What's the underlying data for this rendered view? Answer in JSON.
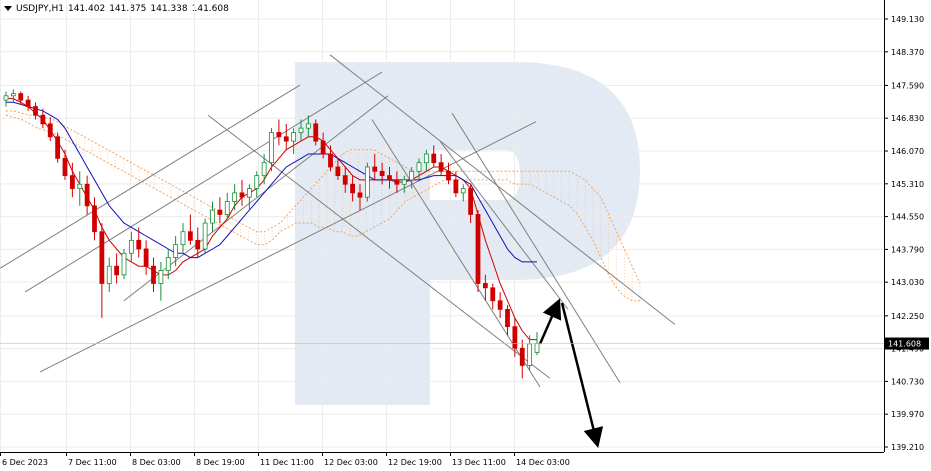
{
  "header": {
    "symbol": "USDJPY,H1",
    "open": "141.402",
    "high": "141.875",
    "low": "141.338",
    "close": "141.608"
  },
  "colors": {
    "bull": "#1a8f3a",
    "bear": "#d10000",
    "kijun": "#d10000",
    "tenkan": "#1010c0",
    "cloud": "#f4a460",
    "trend": "#808080",
    "watermark": "#dfe6f2",
    "price_tag_bg": "#000000",
    "arrow": "#000000"
  },
  "chart_data": {
    "type": "candlestick",
    "symbol": "USDJPY",
    "timeframe": "H1",
    "ylim": [
      139.0,
      149.6
    ],
    "yticks": [
      "149.130",
      "148.370",
      "147.590",
      "146.830",
      "146.070",
      "145.310",
      "144.550",
      "143.790",
      "143.030",
      "142.250",
      "141.490",
      "140.730",
      "139.970",
      "139.210"
    ],
    "current_price": "141.608",
    "xticks": [
      "6 Dec 2023",
      "7 Dec 11:00",
      "8 Dec 03:00",
      "8 Dec 19:00",
      "11 Dec 11:00",
      "12 Dec 03:00",
      "12 Dec 19:00",
      "13 Dec 11:00",
      "14 Dec 03:00"
    ],
    "grid": true,
    "candles": [
      [
        147.25,
        147.45,
        147.1,
        147.35
      ],
      [
        147.35,
        147.5,
        147.2,
        147.4
      ],
      [
        147.4,
        147.45,
        147.15,
        147.25
      ],
      [
        147.25,
        147.35,
        147.0,
        147.1
      ],
      [
        147.1,
        147.2,
        146.8,
        146.9
      ],
      [
        146.9,
        147.05,
        146.6,
        146.7
      ],
      [
        146.7,
        146.85,
        146.3,
        146.4
      ],
      [
        146.4,
        146.5,
        145.8,
        145.9
      ],
      [
        145.9,
        146.1,
        145.4,
        145.5
      ],
      [
        145.5,
        145.8,
        145.0,
        145.2
      ],
      [
        145.2,
        145.6,
        144.8,
        145.3
      ],
      [
        145.3,
        145.5,
        144.6,
        144.8
      ],
      [
        144.8,
        145.0,
        144.0,
        144.2
      ],
      [
        144.2,
        144.4,
        142.2,
        143.0
      ],
      [
        143.0,
        143.6,
        142.8,
        143.4
      ],
      [
        143.4,
        143.7,
        143.0,
        143.2
      ],
      [
        143.2,
        143.8,
        143.1,
        143.7
      ],
      [
        143.7,
        144.2,
        143.5,
        144.0
      ],
      [
        144.0,
        144.3,
        143.6,
        143.8
      ],
      [
        143.8,
        144.0,
        143.2,
        143.4
      ],
      [
        143.4,
        143.6,
        142.8,
        143.0
      ],
      [
        143.0,
        143.5,
        142.6,
        143.3
      ],
      [
        143.3,
        143.8,
        143.1,
        143.6
      ],
      [
        143.6,
        144.1,
        143.4,
        143.9
      ],
      [
        143.9,
        144.4,
        143.7,
        144.2
      ],
      [
        144.2,
        144.6,
        143.9,
        144.0
      ],
      [
        144.0,
        144.3,
        143.6,
        143.8
      ],
      [
        143.8,
        144.5,
        143.7,
        144.4
      ],
      [
        144.4,
        144.9,
        144.2,
        144.7
      ],
      [
        144.7,
        145.0,
        144.4,
        144.6
      ],
      [
        144.6,
        145.1,
        144.5,
        144.9
      ],
      [
        144.9,
        145.3,
        144.7,
        145.1
      ],
      [
        145.1,
        145.4,
        144.8,
        145.0
      ],
      [
        145.0,
        145.3,
        144.7,
        145.2
      ],
      [
        145.2,
        145.6,
        145.0,
        145.5
      ],
      [
        145.5,
        146.0,
        145.3,
        145.8
      ],
      [
        145.8,
        146.6,
        145.6,
        146.5
      ],
      [
        146.5,
        146.8,
        146.2,
        146.4
      ],
      [
        146.4,
        146.7,
        146.1,
        146.3
      ],
      [
        146.3,
        146.6,
        146.0,
        146.5
      ],
      [
        146.5,
        146.8,
        146.3,
        146.6
      ],
      [
        146.6,
        146.9,
        146.4,
        146.7
      ],
      [
        146.7,
        146.8,
        146.2,
        146.3
      ],
      [
        146.3,
        146.5,
        145.9,
        146.0
      ],
      [
        146.0,
        146.2,
        145.6,
        145.7
      ],
      [
        145.7,
        145.9,
        145.4,
        145.5
      ],
      [
        145.5,
        145.7,
        145.1,
        145.3
      ],
      [
        145.3,
        145.5,
        144.9,
        145.1
      ],
      [
        145.1,
        145.3,
        144.7,
        145.0
      ],
      [
        145.0,
        145.8,
        144.9,
        145.7
      ],
      [
        145.7,
        146.0,
        145.4,
        145.6
      ],
      [
        145.6,
        145.8,
        145.3,
        145.5
      ],
      [
        145.5,
        145.7,
        145.2,
        145.4
      ],
      [
        145.4,
        145.6,
        145.1,
        145.3
      ],
      [
        145.3,
        145.5,
        145.1,
        145.4
      ],
      [
        145.4,
        145.7,
        145.2,
        145.6
      ],
      [
        145.6,
        145.9,
        145.4,
        145.8
      ],
      [
        145.8,
        146.1,
        145.6,
        146.0
      ],
      [
        146.0,
        146.2,
        145.7,
        145.8
      ],
      [
        145.8,
        146.0,
        145.5,
        145.6
      ],
      [
        145.6,
        145.8,
        145.3,
        145.4
      ],
      [
        145.4,
        145.6,
        145.0,
        145.1
      ],
      [
        145.1,
        145.3,
        144.9,
        145.2
      ],
      [
        145.2,
        145.3,
        144.4,
        144.6
      ],
      [
        144.6,
        144.7,
        142.8,
        143.0
      ],
      [
        143.0,
        143.2,
        142.6,
        142.9
      ],
      [
        142.9,
        143.0,
        142.4,
        142.6
      ],
      [
        142.6,
        142.8,
        142.2,
        142.4
      ],
      [
        142.4,
        142.5,
        141.8,
        142.0
      ],
      [
        142.0,
        142.2,
        141.3,
        141.5
      ],
      [
        141.5,
        141.7,
        140.8,
        141.1
      ],
      [
        141.1,
        141.8,
        141.0,
        141.6
      ],
      [
        141.4,
        141.875,
        141.338,
        141.608
      ]
    ],
    "series": [
      {
        "name": "",
        "color": "#d10000",
        "type": "line",
        "values": [
          147.3,
          147.28,
          147.2,
          147.1,
          146.95,
          146.8,
          146.55,
          146.3,
          146.0,
          145.6,
          145.3,
          145.0,
          144.7,
          144.3,
          144.0,
          143.8,
          143.6,
          143.5,
          143.4,
          143.4,
          143.3,
          143.2,
          143.2,
          143.3,
          143.5,
          143.6,
          143.7,
          143.8,
          144.1,
          144.3,
          144.5,
          144.8,
          145.0,
          145.1,
          145.2,
          145.4,
          145.7,
          145.9,
          146.1,
          146.2,
          146.3,
          146.4,
          146.4,
          146.3,
          146.1,
          145.9,
          145.7,
          145.5,
          145.4,
          145.4,
          145.4,
          145.4,
          145.4,
          145.35,
          145.35,
          145.4,
          145.5,
          145.6,
          145.7,
          145.7,
          145.6,
          145.5,
          145.4,
          145.2,
          144.6,
          144.0,
          143.5,
          143.0,
          142.6,
          142.2,
          141.9,
          141.7,
          141.7
        ]
      },
      {
        "name": "",
        "color": "#1010c0",
        "type": "line",
        "values": [
          147.2,
          147.2,
          147.15,
          147.1,
          147.05,
          147.0,
          146.9,
          146.8,
          146.6,
          146.3,
          146.0,
          145.7,
          145.4,
          145.1,
          144.8,
          144.6,
          144.4,
          144.3,
          144.2,
          144.1,
          144.0,
          143.9,
          143.8,
          143.7,
          143.7,
          143.6,
          143.6,
          143.7,
          143.8,
          143.9,
          144.1,
          144.3,
          144.5,
          144.7,
          144.9,
          145.1,
          145.3,
          145.5,
          145.7,
          145.8,
          145.9,
          146.0,
          146.0,
          146.0,
          146.0,
          145.9,
          145.8,
          145.7,
          145.6,
          145.5,
          145.4,
          145.4,
          145.4,
          145.4,
          145.4,
          145.4,
          145.4,
          145.45,
          145.5,
          145.5,
          145.5,
          145.5,
          145.4,
          145.3,
          145.0,
          144.7,
          144.4,
          144.1,
          143.8,
          143.6,
          143.5,
          143.5,
          143.5
        ]
      }
    ]
  }
}
